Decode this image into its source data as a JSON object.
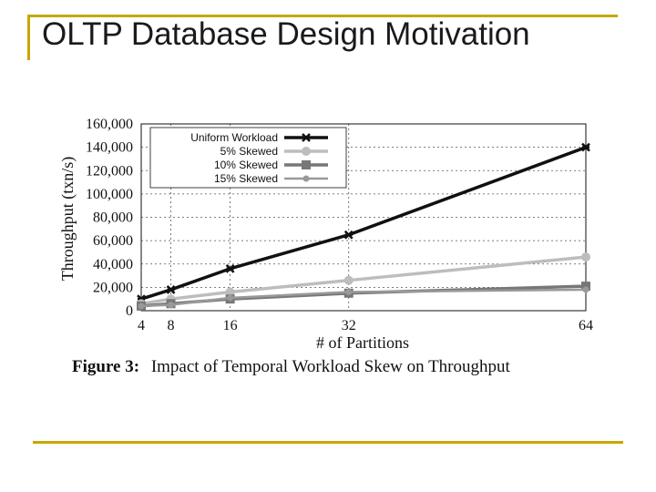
{
  "slide": {
    "title": "OLTP Database Design Motivation",
    "accent_color": "#c8a600"
  },
  "figure": {
    "caption_label": "Figure 3:",
    "caption_text": "Impact of Temporal Workload Skew on Throughput"
  },
  "chart_data": {
    "type": "line",
    "xlabel": "# of Partitions",
    "ylabel": "Throughput (txn/s)",
    "x": [
      4,
      8,
      16,
      32,
      64
    ],
    "x_ticks": [
      "4",
      "8",
      "16",
      "32",
      "64"
    ],
    "y_ticks": [
      "0",
      "20,000",
      "40,000",
      "60,000",
      "80,000",
      "100,000",
      "120,000",
      "140,000",
      "160,000"
    ],
    "xlim": [
      4,
      64
    ],
    "ylim": [
      0,
      160000
    ],
    "grid": true,
    "legend_position": "top-left",
    "series": [
      {
        "name": "Uniform Workload",
        "values": [
          10000,
          18000,
          36000,
          65000,
          140000
        ],
        "color": "#111111",
        "marker": "x-cross"
      },
      {
        "name": "5% Skewed",
        "values": [
          6000,
          10000,
          16000,
          26000,
          46000
        ],
        "color": "#bdbdbd",
        "marker": "circle"
      },
      {
        "name": "10% Skewed",
        "values": [
          4000,
          6000,
          10000,
          15000,
          21000
        ],
        "color": "#777777",
        "marker": "square"
      },
      {
        "name": "15% Skewed",
        "values": [
          4000,
          5000,
          11000,
          16000,
          18000
        ],
        "color": "#999999",
        "marker": "small-circle"
      }
    ]
  }
}
